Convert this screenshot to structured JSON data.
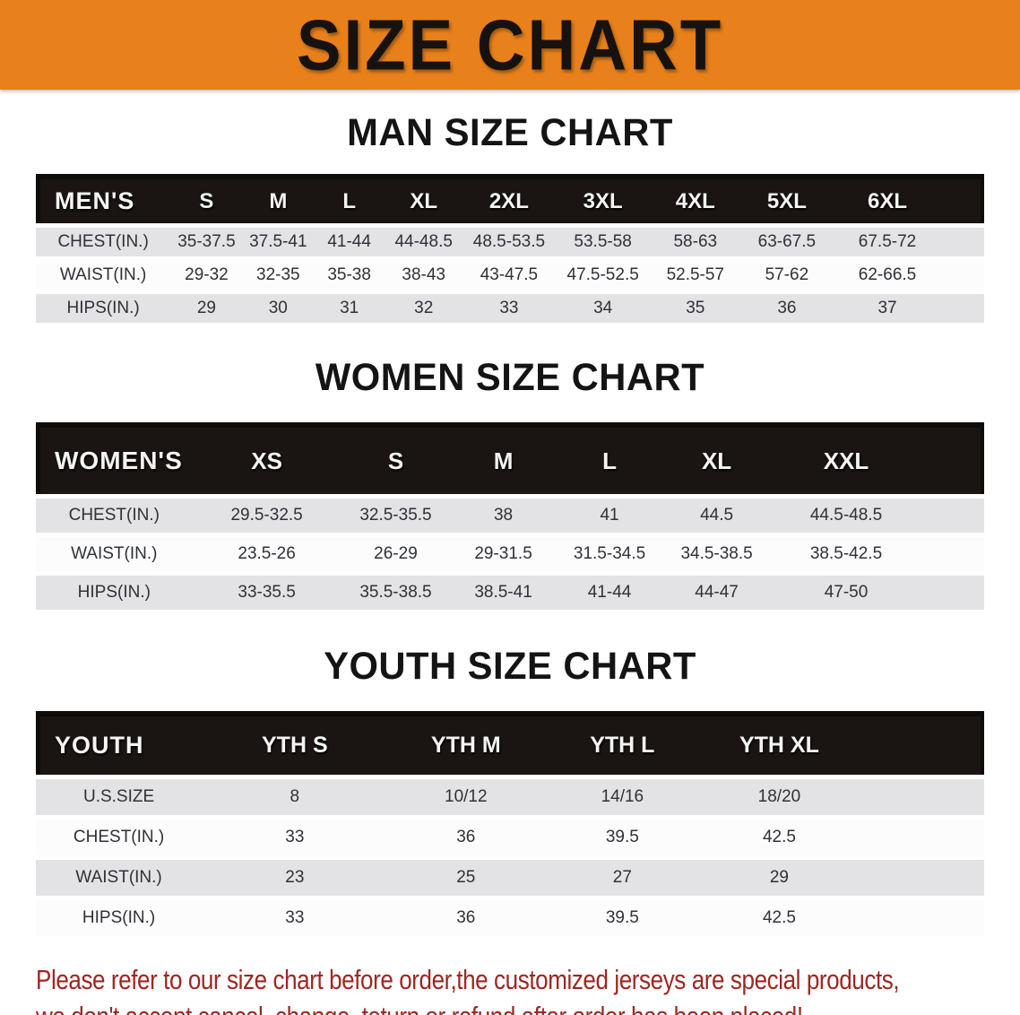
{
  "banner": {
    "title": "SIZE CHART",
    "bg_color": "#E8811B",
    "text_color": "#161210"
  },
  "colors": {
    "table_header_bg": "#1A1513",
    "table_header_text": "#F5F4F2",
    "row_gray": "#E3E2E4",
    "row_white": "#FCFCFC",
    "disclaimer_red": "#9D2722"
  },
  "sections": {
    "men": {
      "heading": "MAN SIZE CHART",
      "table": {
        "label": "MEN'S",
        "columns": [
          "S",
          "M",
          "L",
          "XL",
          "2XL",
          "3XL",
          "4XL",
          "5XL",
          "6XL"
        ],
        "rows": [
          {
            "label": "CHEST(IN.)",
            "values": [
              "35-37.5",
              "37.5-41",
              "41-44",
              "44-48.5",
              "48.5-53.5",
              "53.5-58",
              "58-63",
              "63-67.5",
              "67.5-72"
            ]
          },
          {
            "label": "WAIST(IN.)",
            "values": [
              "29-32",
              "32-35",
              "35-38",
              "38-43",
              "43-47.5",
              "47.5-52.5",
              "52.5-57",
              "57-62",
              "62-66.5"
            ]
          },
          {
            "label": "HIPS(IN.)",
            "values": [
              "29",
              "30",
              "31",
              "32",
              "33",
              "34",
              "35",
              "36",
              "37"
            ]
          }
        ]
      }
    },
    "women": {
      "heading": "WOMEN SIZE CHART",
      "table": {
        "label": "WOMEN'S",
        "columns": [
          "XS",
          "S",
          "M",
          "L",
          "XL",
          "XXL"
        ],
        "rows": [
          {
            "label": "CHEST(IN.)",
            "values": [
              "29.5-32.5",
              "32.5-35.5",
              "38",
              "41",
              "44.5",
              "44.5-48.5"
            ]
          },
          {
            "label": "WAIST(IN.)",
            "values": [
              "23.5-26",
              "26-29",
              "29-31.5",
              "31.5-34.5",
              "34.5-38.5",
              "38.5-42.5"
            ]
          },
          {
            "label": "HIPS(IN.)",
            "values": [
              "33-35.5",
              "35.5-38.5",
              "38.5-41",
              "41-44",
              "44-47",
              "47-50"
            ]
          }
        ]
      }
    },
    "youth": {
      "heading": "YOUTH SIZE CHART",
      "table": {
        "label": "YOUTH",
        "columns": [
          "YTH S",
          "YTH M",
          "YTH L",
          "YTH XL"
        ],
        "rows": [
          {
            "label": "U.S.SIZE",
            "values": [
              "8",
              "10/12",
              "14/16",
              "18/20"
            ]
          },
          {
            "label": "CHEST(IN.)",
            "values": [
              "33",
              "36",
              "39.5",
              "42.5"
            ]
          },
          {
            "label": "WAIST(IN.)",
            "values": [
              "23",
              "25",
              "27",
              "29"
            ]
          },
          {
            "label": "HIPS(IN.)",
            "values": [
              "33",
              "36",
              "39.5",
              "42.5"
            ]
          }
        ]
      }
    }
  },
  "footer": {
    "line1": "Please refer to our size chart before order,the customized jerseys are special products,",
    "line2": "we don't accept cancel, change, teturn or refund after order has been placed!"
  }
}
